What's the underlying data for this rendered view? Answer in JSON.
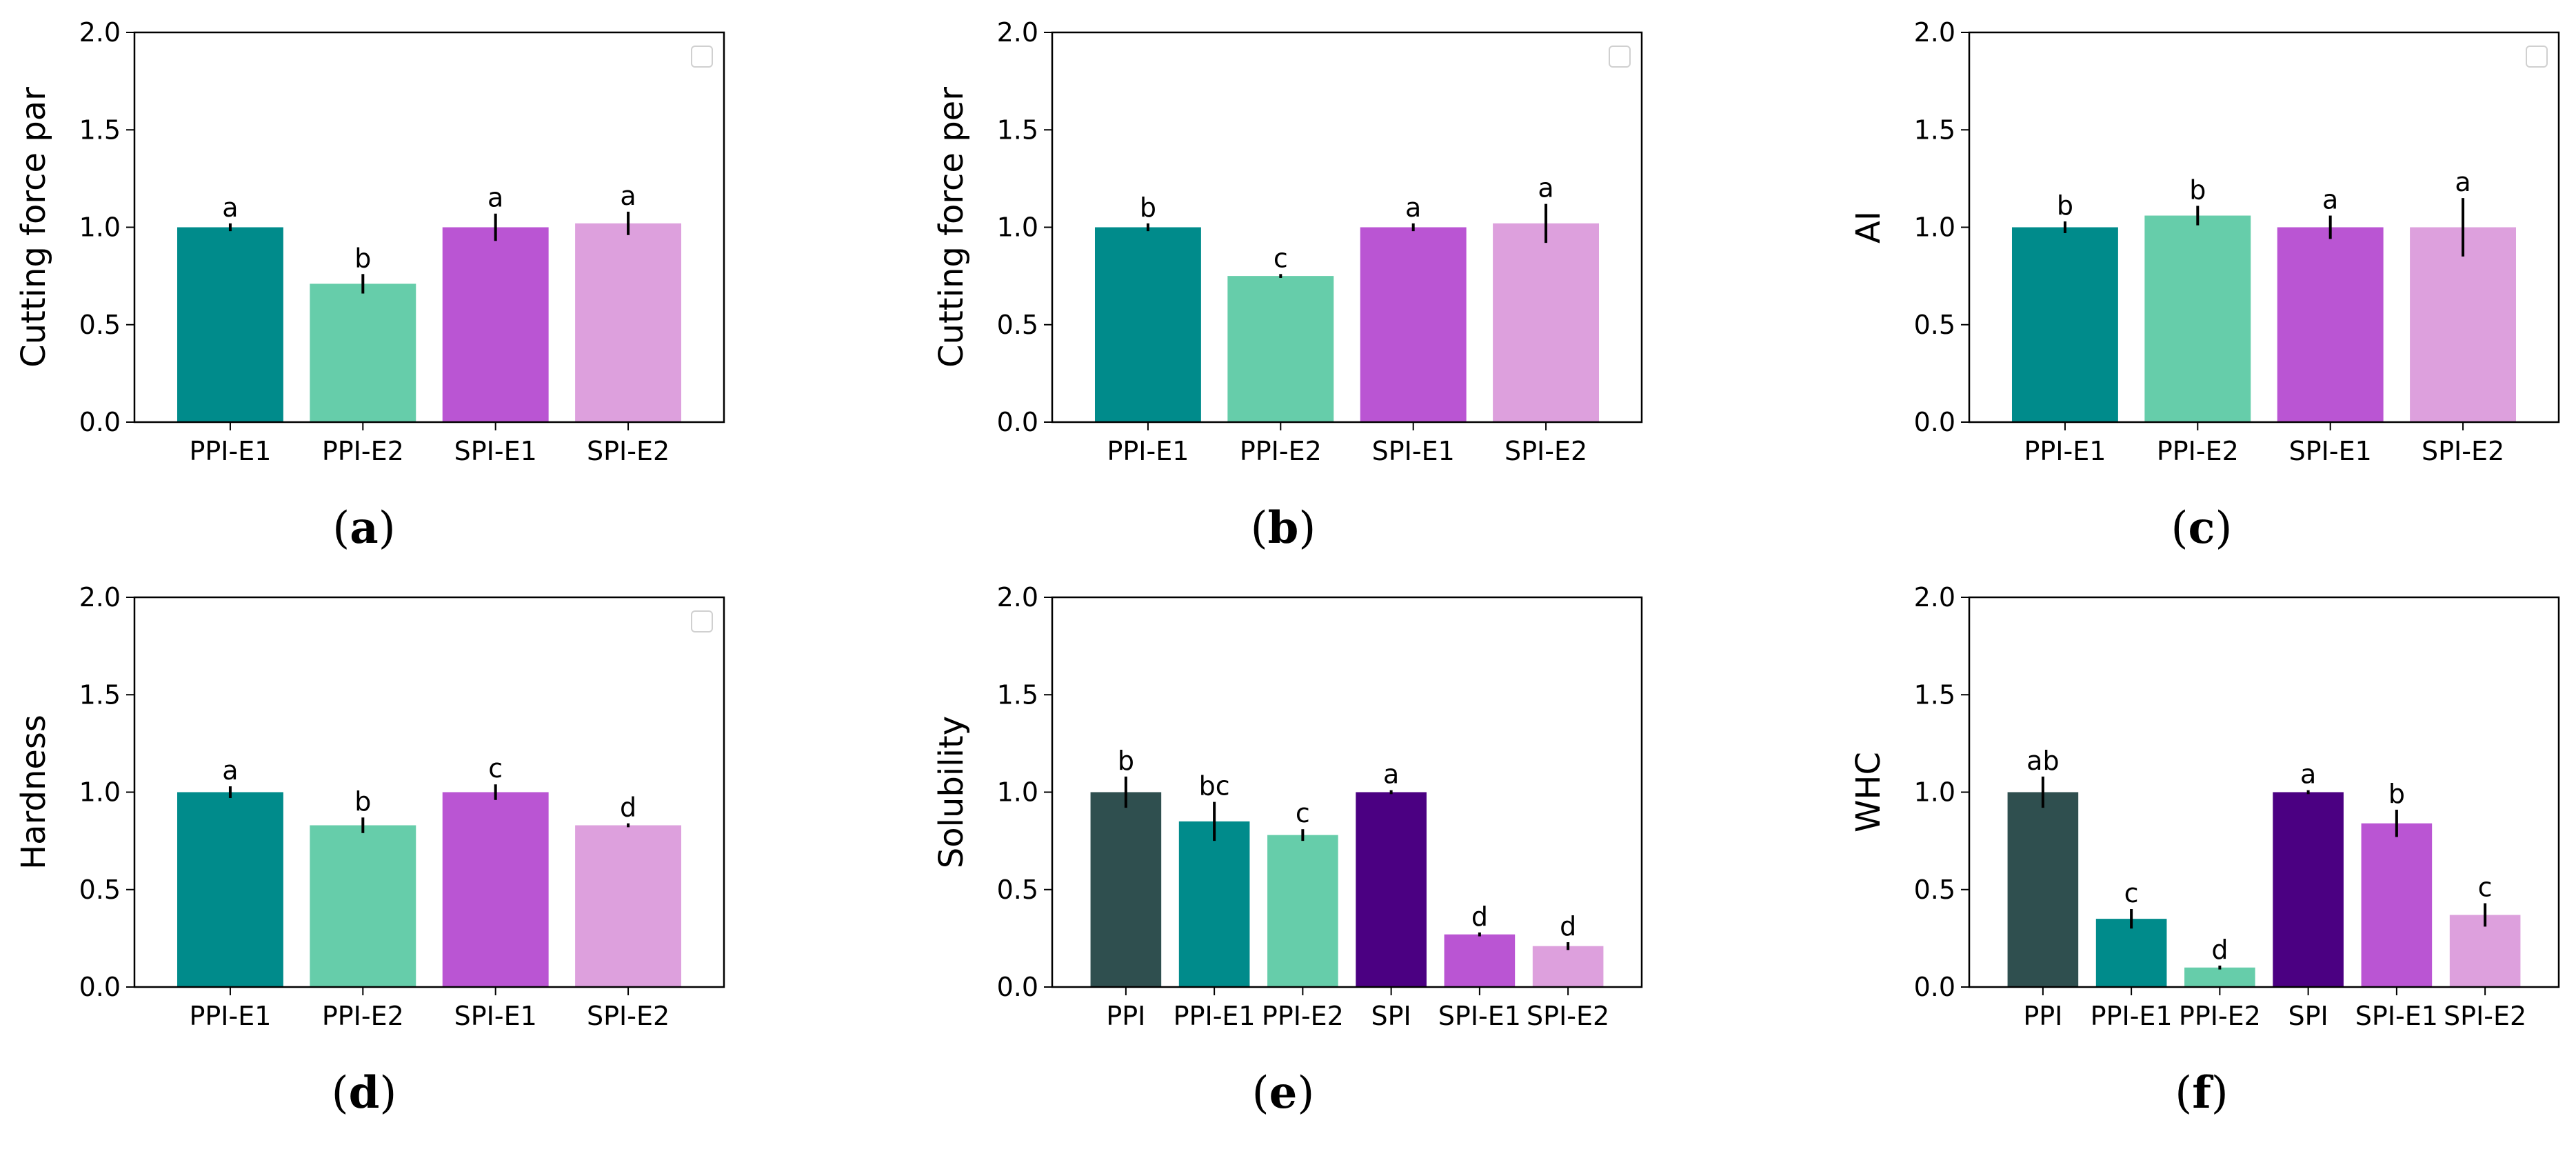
{
  "colors": {
    "PPI": "#2f4f4f",
    "PPI-E1": "#008b8b",
    "PPI-E2": "#66cdaa",
    "SPI": "#4b0082",
    "SPI-E1": "#ba55d3",
    "SPI-E2": "#dda0dd"
  },
  "chart_data": [
    {
      "panel": "a",
      "caption": "a",
      "type": "bar",
      "ylabel": "Cutting force par",
      "ylim": [
        0,
        2.0
      ],
      "yticks": [
        "0.0",
        "0.5",
        "1.0",
        "1.5",
        "2.0"
      ],
      "categories": [
        "PPI-E1",
        "PPI-E2",
        "SPI-E1",
        "SPI-E2"
      ],
      "values": [
        1.0,
        0.71,
        1.0,
        1.02
      ],
      "errors": [
        0.02,
        0.05,
        0.07,
        0.06
      ],
      "letters": [
        "a",
        "b",
        "a",
        "a"
      ],
      "legend": true
    },
    {
      "panel": "b",
      "caption": "b",
      "type": "bar",
      "ylabel": "Cutting force per",
      "ylim": [
        0,
        2.0
      ],
      "yticks": [
        "0.0",
        "0.5",
        "1.0",
        "1.5",
        "2.0"
      ],
      "categories": [
        "PPI-E1",
        "PPI-E2",
        "SPI-E1",
        "SPI-E2"
      ],
      "values": [
        1.0,
        0.75,
        1.0,
        1.02
      ],
      "errors": [
        0.02,
        0.01,
        0.02,
        0.1
      ],
      "letters": [
        "b",
        "c",
        "a",
        "a"
      ],
      "legend": true
    },
    {
      "panel": "c",
      "caption": "c",
      "type": "bar",
      "ylabel": "AI",
      "ylim": [
        0,
        2.0
      ],
      "yticks": [
        "0.0",
        "0.5",
        "1.0",
        "1.5",
        "2.0"
      ],
      "categories": [
        "PPI-E1",
        "PPI-E2",
        "SPI-E1",
        "SPI-E2"
      ],
      "values": [
        1.0,
        1.06,
        1.0,
        1.0
      ],
      "errors": [
        0.03,
        0.05,
        0.06,
        0.15
      ],
      "letters": [
        "b",
        "b",
        "a",
        "a"
      ],
      "legend": true
    },
    {
      "panel": "d",
      "caption": "d",
      "type": "bar",
      "ylabel": "Hardness",
      "ylim": [
        0,
        2.0
      ],
      "yticks": [
        "0.0",
        "0.5",
        "1.0",
        "1.5",
        "2.0"
      ],
      "categories": [
        "PPI-E1",
        "PPI-E2",
        "SPI-E1",
        "SPI-E2"
      ],
      "values": [
        1.0,
        0.83,
        1.0,
        0.83
      ],
      "errors": [
        0.03,
        0.04,
        0.04,
        0.01
      ],
      "letters": [
        "a",
        "b",
        "c",
        "d"
      ],
      "legend": true
    },
    {
      "panel": "e",
      "caption": "e",
      "type": "bar",
      "ylabel": "Solubility",
      "ylim": [
        0,
        2.0
      ],
      "yticks": [
        "0.0",
        "0.5",
        "1.0",
        "1.5",
        "2.0"
      ],
      "categories": [
        "PPI",
        "PPI-E1",
        "PPI-E2",
        "SPI",
        "SPI-E1",
        "SPI-E2"
      ],
      "values": [
        1.0,
        0.85,
        0.78,
        1.0,
        0.27,
        0.21
      ],
      "errors": [
        0.08,
        0.1,
        0.03,
        0.01,
        0.01,
        0.02
      ],
      "letters": [
        "b",
        "bc",
        "c",
        "a",
        "d",
        "d"
      ],
      "legend": false
    },
    {
      "panel": "f",
      "caption": "f",
      "type": "bar",
      "ylabel": "WHC",
      "ylim": [
        0,
        2.0
      ],
      "yticks": [
        "0.0",
        "0.5",
        "1.0",
        "1.5",
        "2.0"
      ],
      "categories": [
        "PPI",
        "PPI-E1",
        "PPI-E2",
        "SPI",
        "SPI-E1",
        "SPI-E2"
      ],
      "values": [
        1.0,
        0.35,
        0.1,
        1.0,
        0.84,
        0.37
      ],
      "errors": [
        0.08,
        0.05,
        0.01,
        0.01,
        0.07,
        0.06
      ],
      "letters": [
        "ab",
        "c",
        "d",
        "a",
        "b",
        "c"
      ],
      "legend": false
    }
  ]
}
